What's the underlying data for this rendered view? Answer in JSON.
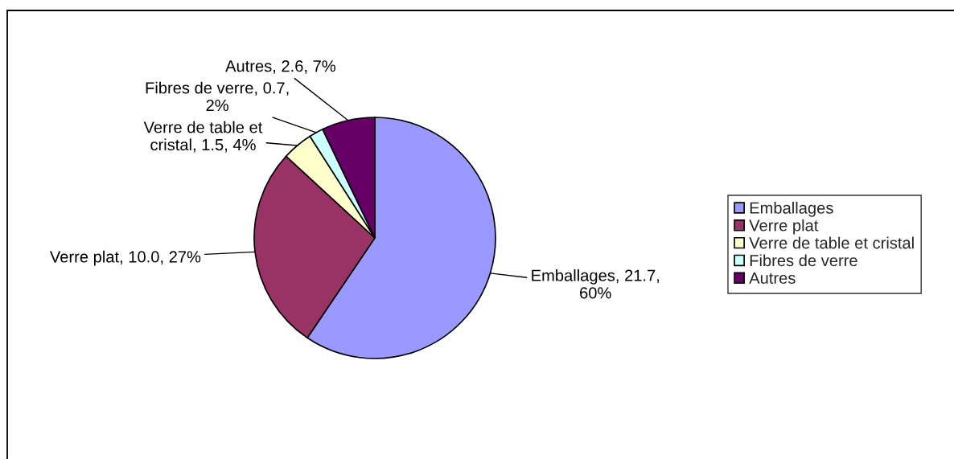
{
  "chart_data": {
    "type": "pie",
    "categories": [
      "Emballages",
      "Verre plat",
      "Verre de table et cristal",
      "Fibres de verre",
      "Autres"
    ],
    "values": [
      21.7,
      10.0,
      1.5,
      0.7,
      2.6
    ],
    "colors": [
      "#9999ff",
      "#993366",
      "#ffffcc",
      "#ccffff",
      "#660066"
    ],
    "value_labels": [
      "Emballages, 21.7,\n60%",
      "Verre plat, 10.0, 27%",
      "Verre de table et\ncristal, 1.5, 4%",
      "Fibres de verre, 0.7,\n2%",
      "Autres, 2.6, 7%"
    ],
    "legend": "right"
  }
}
